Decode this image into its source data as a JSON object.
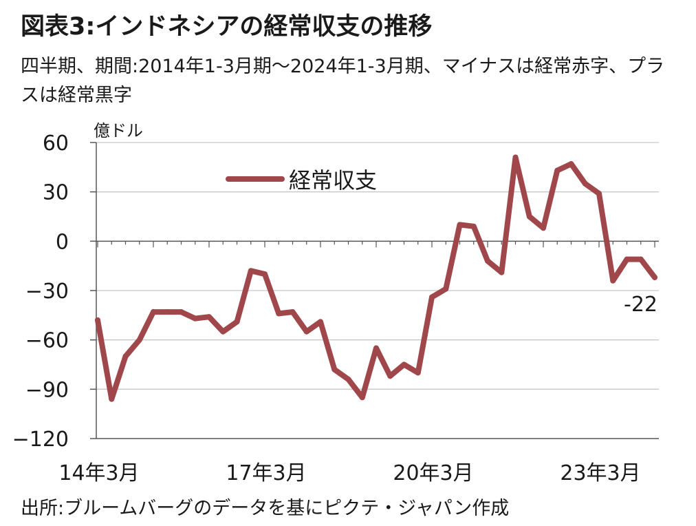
{
  "title": "図表3:インドネシアの経常収支の推移",
  "subtitle": "四半期、期間:2014年1-3月期〜2024年1-3月期、マイナスは経常赤字、プラスは経常黒字",
  "source": "出所:ブルームバーグのデータを基にピクテ・ジャパン作成",
  "chart_data": {
    "type": "line",
    "unit_label": "億ドル",
    "ylim": [
      -120,
      60
    ],
    "yticks": [
      60,
      30,
      0,
      -30,
      -60,
      -90,
      -120
    ],
    "ytick_labels": [
      "60",
      "30",
      "0",
      "−30",
      "−60",
      "−90",
      "−120"
    ],
    "xtick_labels": [
      "14年3月",
      "17年3月",
      "20年3月",
      "23年3月"
    ],
    "xtick_index": [
      0,
      12,
      24,
      36
    ],
    "grid": true,
    "legend": "top-center",
    "end_label": "-22",
    "colors": {
      "line": "#a0474b",
      "grid": "#c8c8c8",
      "axis": "#555555"
    },
    "series": [
      {
        "name": "経常収支",
        "values": [
          -48,
          -96,
          -70,
          -60,
          -43,
          -43,
          -43,
          -47,
          -46,
          -55,
          -49,
          -18,
          -20,
          -44,
          -43,
          -55,
          -49,
          -78,
          -84,
          -95,
          -65,
          -82,
          -75,
          -80,
          -34,
          -29,
          10,
          9,
          -12,
          -19,
          51,
          15,
          8,
          43,
          47,
          35,
          29,
          -24,
          -11,
          -11,
          -22
        ]
      }
    ]
  }
}
